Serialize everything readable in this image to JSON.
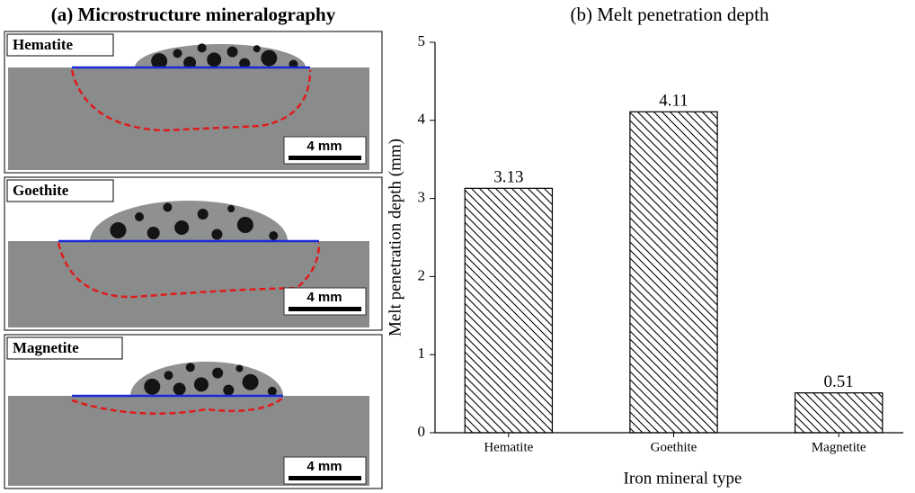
{
  "panel_a": {
    "title": "(a) Microstructure mineralography",
    "panels": [
      {
        "label": "Hematite",
        "scale_bar": "4 mm"
      },
      {
        "label": "Goethite",
        "scale_bar": "4 mm"
      },
      {
        "label": "Magnetite",
        "scale_bar": "4 mm"
      }
    ]
  },
  "chart_data": {
    "type": "bar",
    "title": "(b) Melt penetration depth",
    "categories": [
      "Hematite",
      "Goethite",
      "Magnetite"
    ],
    "values": [
      3.13,
      4.11,
      0.51
    ],
    "color": "#000000",
    "x_label": "Iron mineral type",
    "y_label": "Melt penetration depth (mm)",
    "ylim": [
      0,
      5
    ],
    "yticks": [
      0,
      1,
      2,
      3,
      4,
      5
    ],
    "grid": false
  }
}
